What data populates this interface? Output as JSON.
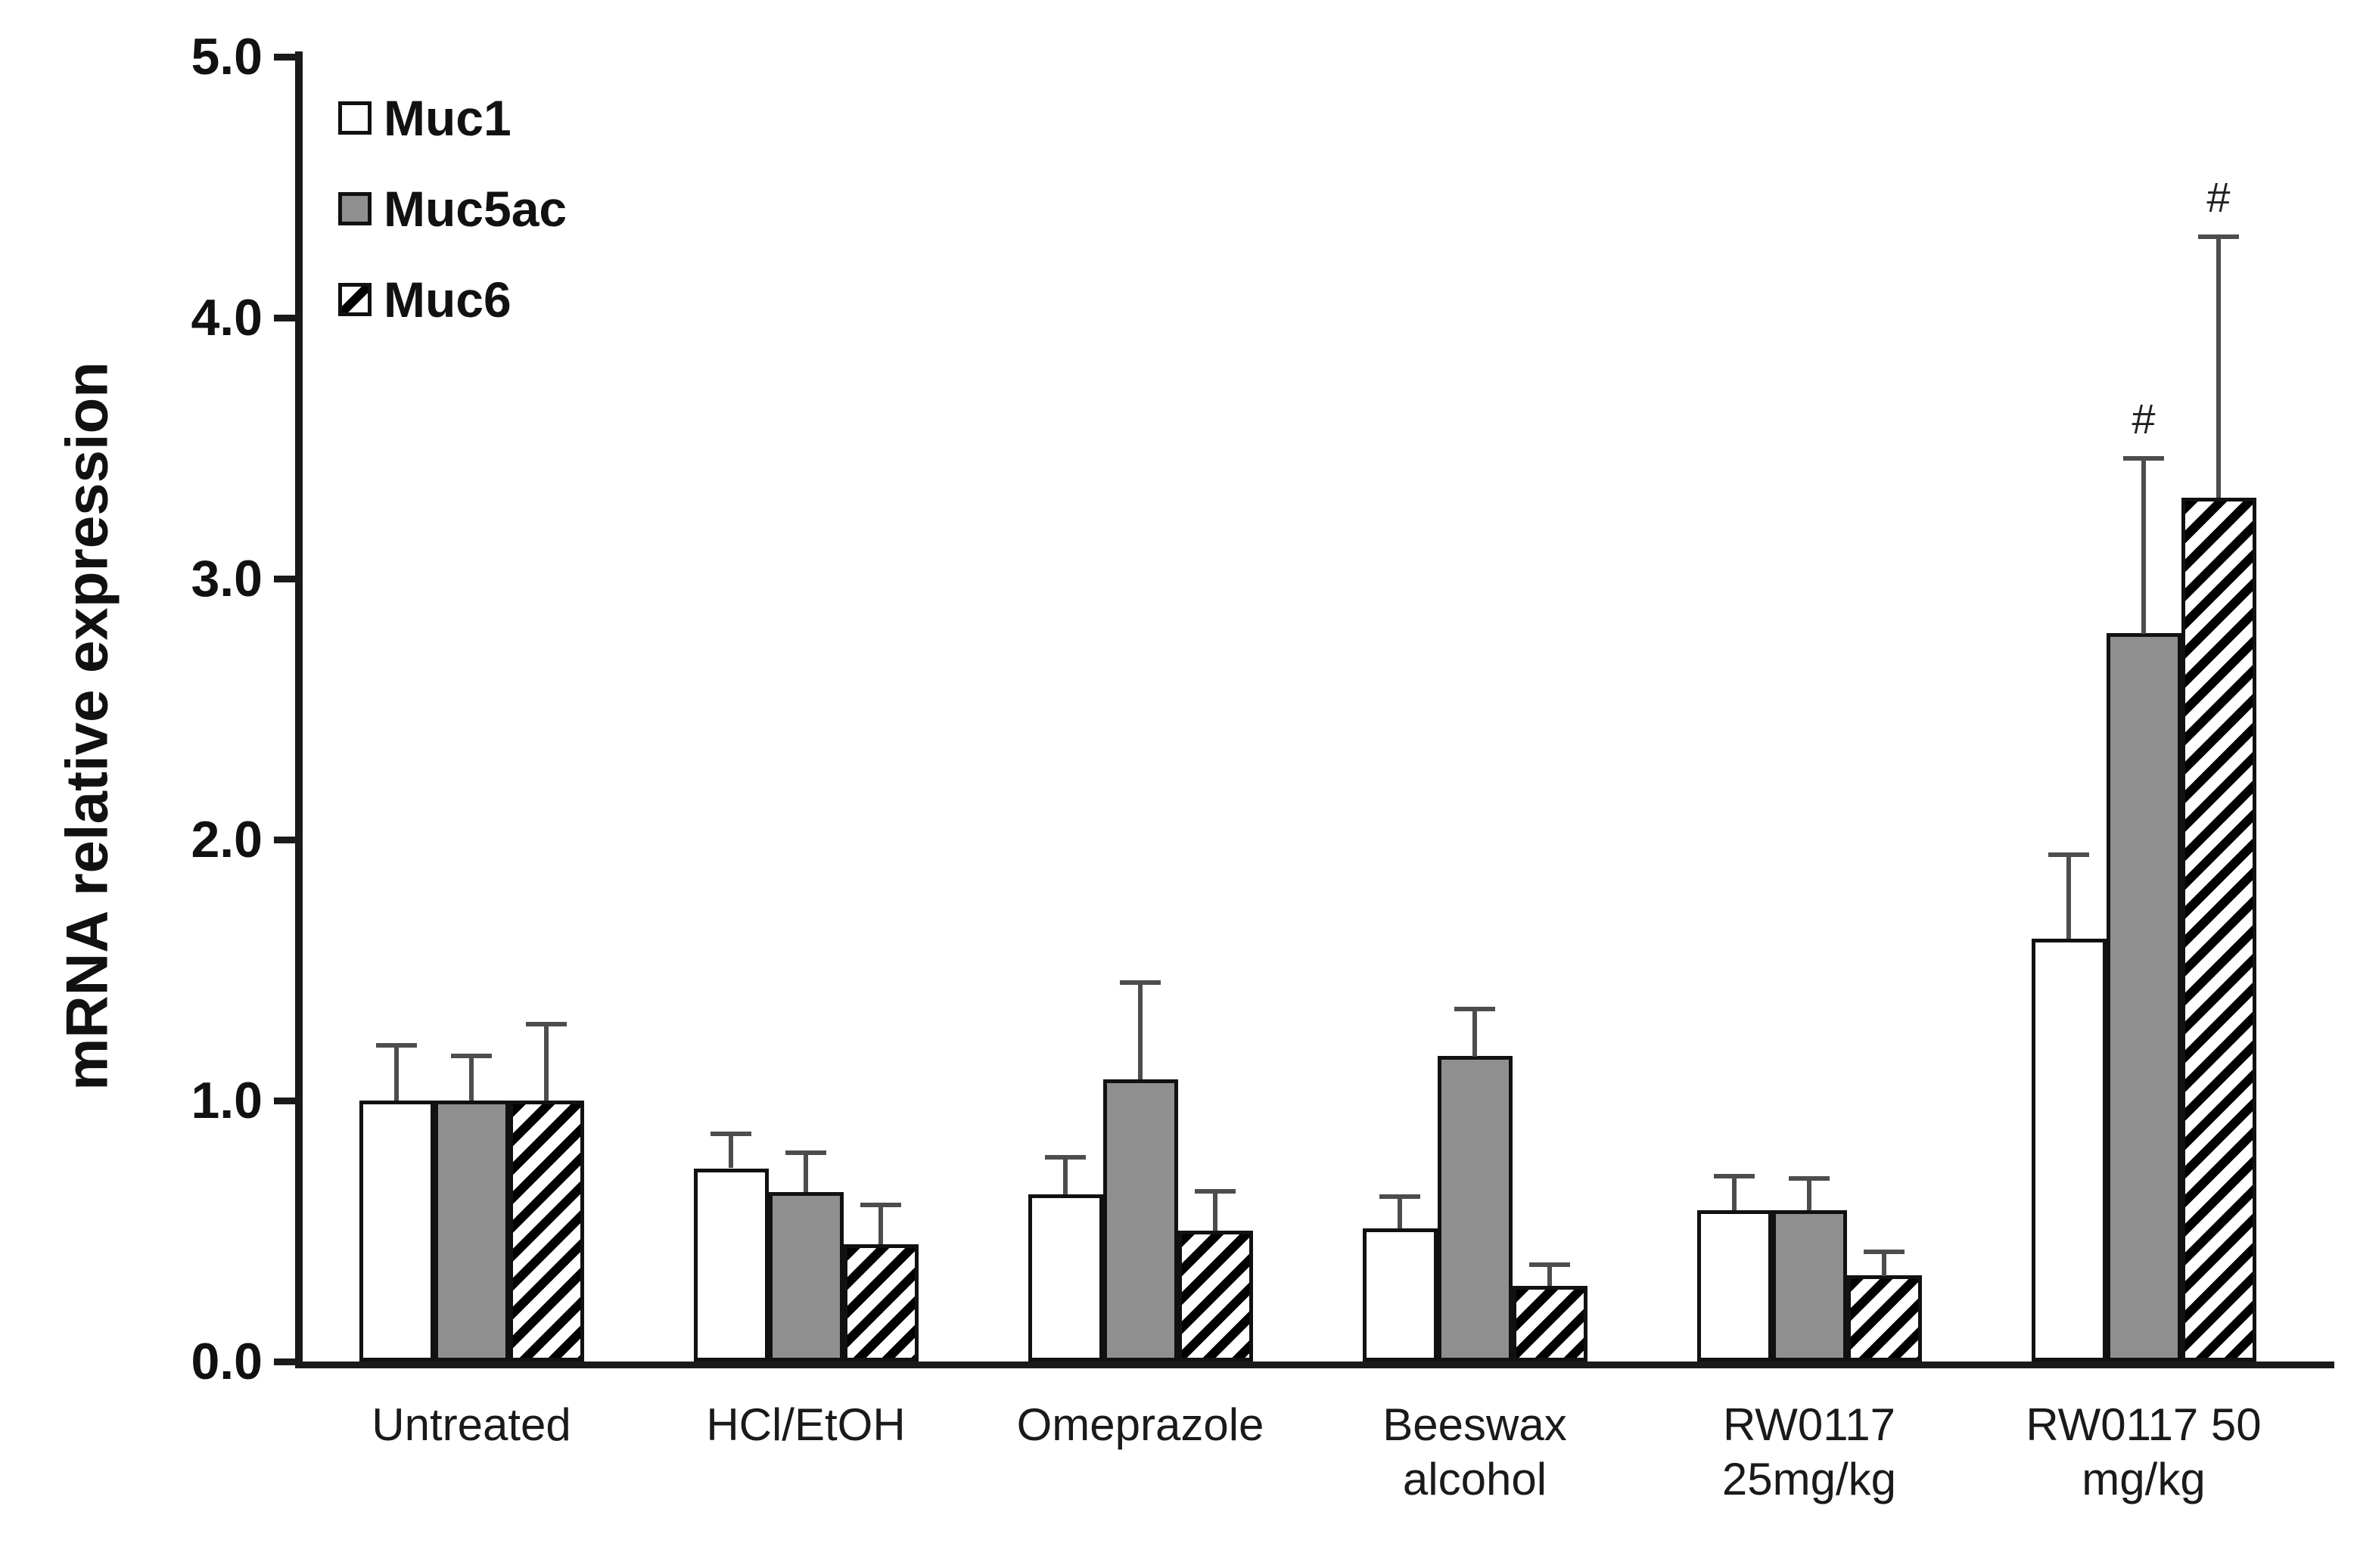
{
  "chart_data": {
    "type": "bar",
    "title": "",
    "ylabel": "mRNA relative expression",
    "xlabel": "",
    "ylim": [
      0,
      5
    ],
    "ytick_step": 1.0,
    "ytick_labels": [
      "0.0",
      "1.0",
      "2.0",
      "3.0",
      "4.0",
      "5.0"
    ],
    "grid": false,
    "legend_position": "top-left-inside",
    "significance_symbol": "#",
    "categories": [
      "Untreated",
      "HCl/EtOH",
      "Omeprazole",
      "Beeswax alcohol",
      "RW0117 25mg/kg",
      "RW0117 50 mg/kg"
    ],
    "category_lines": [
      [
        "Untreated"
      ],
      [
        "HCl/EtOH"
      ],
      [
        "Omeprazole"
      ],
      [
        "Beeswax",
        "alcohol"
      ],
      [
        "RW0117",
        "25mg/kg"
      ],
      [
        "RW0117 50",
        "mg/kg"
      ]
    ],
    "series": [
      {
        "name": "Muc1",
        "pattern": "solid",
        "fill_color": "#ffffff",
        "edge_color": "#111111",
        "values": [
          1.0,
          0.74,
          0.64,
          0.51,
          0.58,
          1.62
        ],
        "errors": [
          0.22,
          0.14,
          0.15,
          0.13,
          0.14,
          0.33
        ],
        "significance": [
          "",
          "",
          "",
          "",
          "",
          ""
        ]
      },
      {
        "name": "Muc5ac",
        "pattern": "solid",
        "fill_color": "#8f8f8f",
        "edge_color": "#111111",
        "values": [
          1.0,
          0.65,
          1.08,
          1.17,
          0.58,
          2.79
        ],
        "errors": [
          0.18,
          0.16,
          0.38,
          0.19,
          0.13,
          0.68
        ],
        "significance": [
          "",
          "",
          "",
          "",
          "",
          "#"
        ]
      },
      {
        "name": "Muc6",
        "pattern": "diagonal-hatch",
        "fill_color": "#ffffff",
        "hatch_color": "#000000",
        "edge_color": "#111111",
        "values": [
          1.0,
          0.45,
          0.5,
          0.29,
          0.33,
          3.31
        ],
        "errors": [
          0.3,
          0.16,
          0.16,
          0.09,
          0.1,
          1.01
        ],
        "significance": [
          "",
          "",
          "",
          "",
          "",
          "#"
        ]
      }
    ],
    "error_bar_color": "#4d4d4d"
  }
}
